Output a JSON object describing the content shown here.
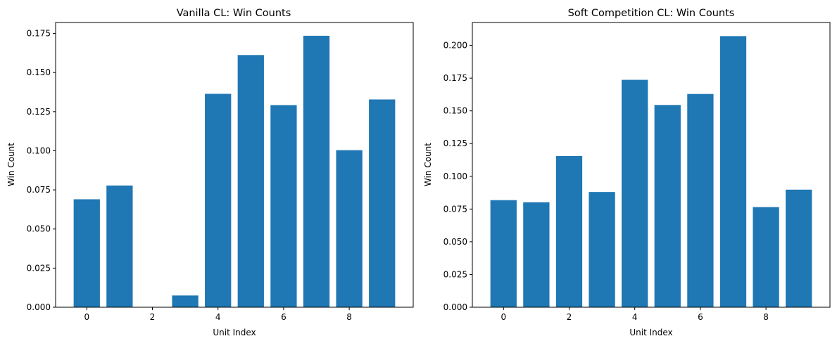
{
  "chart_data": [
    {
      "type": "bar",
      "title": "Vanilla CL: Win Counts",
      "xlabel": "Unit Index",
      "ylabel": "Win Count",
      "categories": [
        0,
        1,
        2,
        3,
        4,
        5,
        6,
        7,
        8,
        9
      ],
      "values": [
        0.069,
        0.0778,
        0.0,
        0.0075,
        0.1364,
        0.1612,
        0.1292,
        0.1735,
        0.1004,
        0.1328
      ],
      "xlim": [
        -0.95,
        9.95
      ],
      "ylim": [
        0,
        0.182
      ],
      "xticks": [
        0,
        2,
        4,
        6,
        8
      ],
      "xtick_labels": [
        "0",
        "2",
        "4",
        "6",
        "8"
      ],
      "yticks": [
        0,
        0.025,
        0.05,
        0.075,
        0.1,
        0.125,
        0.15,
        0.175
      ],
      "ytick_labels": [
        "0.000",
        "0.025",
        "0.050",
        "0.075",
        "0.100",
        "0.125",
        "0.150",
        "0.175"
      ],
      "bar_color": "#1f77b4",
      "grid": false
    },
    {
      "type": "bar",
      "title": "Soft Competition CL: Win Counts",
      "xlabel": "Unit Index",
      "ylabel": "Win Count",
      "categories": [
        0,
        1,
        2,
        3,
        4,
        5,
        6,
        7,
        8,
        9
      ],
      "values": [
        0.0818,
        0.0802,
        0.1155,
        0.088,
        0.1737,
        0.1545,
        0.1629,
        0.2071,
        0.0765,
        0.0898
      ],
      "xlim": [
        -0.95,
        9.95
      ],
      "ylim": [
        0,
        0.2175
      ],
      "xticks": [
        0,
        2,
        4,
        6,
        8
      ],
      "xtick_labels": [
        "0",
        "2",
        "4",
        "6",
        "8"
      ],
      "yticks": [
        0,
        0.025,
        0.05,
        0.075,
        0.1,
        0.125,
        0.15,
        0.175,
        0.2
      ],
      "ytick_labels": [
        "0.000",
        "0.025",
        "0.050",
        "0.075",
        "0.100",
        "0.125",
        "0.150",
        "0.175",
        "0.200"
      ],
      "bar_color": "#1f77b4",
      "grid": false
    }
  ]
}
